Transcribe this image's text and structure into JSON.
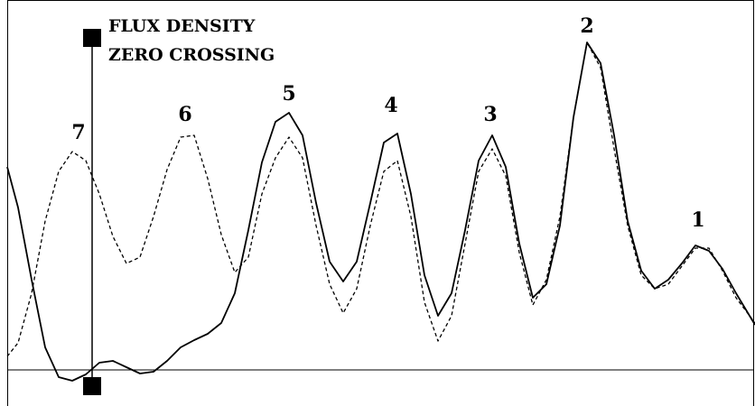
{
  "chart_data": {
    "type": "line",
    "title_lines": [
      "FLUX DENSITY",
      "ZERO CROSSING"
    ],
    "xlim": [
      0,
      836
    ],
    "ylim": [
      -40,
      410
    ],
    "x": [
      8,
      20,
      35,
      50,
      65,
      80,
      95,
      110,
      125,
      140,
      155,
      170,
      185,
      200,
      215,
      230,
      245,
      260,
      275,
      290,
      305,
      320,
      335,
      350,
      365,
      380,
      395,
      410,
      425,
      440,
      455,
      470,
      485,
      500,
      515,
      530,
      545,
      560,
      575,
      590,
      605,
      620,
      635,
      650,
      665,
      680,
      695,
      710,
      725,
      740,
      755,
      770,
      785,
      800,
      815,
      836
    ],
    "series": [
      {
        "color": "#000000",
        "dash": false,
        "values": [
          225,
          180,
          100,
          25,
          -8,
          -12,
          -5,
          8,
          10,
          3,
          -4,
          -2,
          10,
          25,
          33,
          40,
          52,
          85,
          155,
          230,
          275,
          285,
          260,
          185,
          120,
          98,
          120,
          185,
          252,
          262,
          195,
          105,
          60,
          85,
          155,
          232,
          260,
          225,
          140,
          80,
          95,
          160,
          280,
          363,
          340,
          260,
          165,
          110,
          90,
          100,
          118,
          138,
          132,
          112,
          85,
          50
        ]
      },
      {
        "color": "#000000",
        "dash": true,
        "values": [
          15,
          30,
          85,
          165,
          220,
          242,
          232,
          195,
          148,
          118,
          125,
          170,
          222,
          258,
          260,
          212,
          150,
          108,
          125,
          195,
          235,
          258,
          235,
          160,
          95,
          63,
          90,
          160,
          220,
          232,
          170,
          75,
          32,
          60,
          140,
          220,
          245,
          215,
          130,
          72,
          100,
          170,
          280,
          363,
          335,
          245,
          160,
          105,
          90,
          95,
          115,
          135,
          135,
          110,
          80,
          52
        ]
      }
    ],
    "baseline": 0,
    "cursor": {
      "x": 102,
      "range": [
        -18,
        368
      ]
    },
    "peak_labels": [
      {
        "text": "7",
        "x": 87,
        "y": 262
      },
      {
        "text": "6",
        "x": 205,
        "y": 282
      },
      {
        "text": "5",
        "x": 320,
        "y": 305
      },
      {
        "text": "4",
        "x": 433,
        "y": 292
      },
      {
        "text": "3",
        "x": 543,
        "y": 282
      },
      {
        "text": "2",
        "x": 650,
        "y": 380
      },
      {
        "text": "1",
        "x": 773,
        "y": 165
      }
    ]
  }
}
